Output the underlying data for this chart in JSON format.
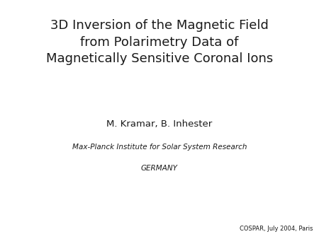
{
  "background_color": "#ffffff",
  "title_line1": "3D Inversion of the Magnetic Field",
  "title_line2": "from Polarimetry Data of",
  "title_line3": "Magnetically Sensitive Coronal Ions",
  "author": "M. Kramar, B. Inhester",
  "institute": "Max-Planck Institute for Solar System Research",
  "country": "GERMANY",
  "footer": "COSPAR, July 2004, Paris",
  "title_fontsize": 13,
  "author_fontsize": 9.5,
  "institute_fontsize": 7.5,
  "footer_fontsize": 6,
  "text_color": "#1a1a1a"
}
